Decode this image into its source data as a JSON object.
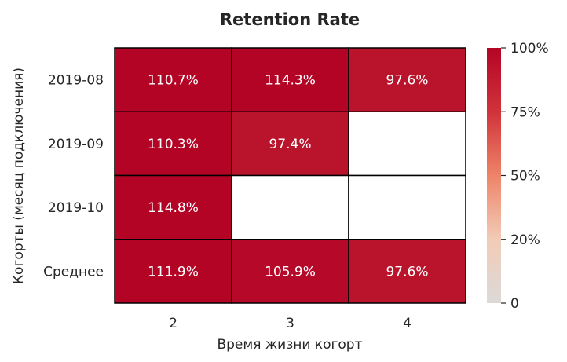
{
  "chart_data": {
    "type": "heatmap",
    "title": "Retention Rate",
    "xlabel": "Время жизни когорт",
    "ylabel": "Когорты (месяц подключения)",
    "x_categories": [
      "2",
      "3",
      "4"
    ],
    "y_categories": [
      "2019-08",
      "2019-09",
      "2019-10",
      "Среднее"
    ],
    "values": [
      [
        110.7,
        114.3,
        97.6
      ],
      [
        110.3,
        97.4,
        null
      ],
      [
        114.8,
        null,
        null
      ],
      [
        111.9,
        105.9,
        97.6
      ]
    ],
    "cell_labels": [
      [
        "110.7%",
        "114.3%",
        "97.6%"
      ],
      [
        "110.3%",
        "97.4%",
        ""
      ],
      [
        "114.8%",
        "",
        ""
      ],
      [
        "111.9%",
        "105.9%",
        "97.6%"
      ]
    ],
    "colorbar": {
      "ticks": [
        0,
        20,
        50,
        75,
        100
      ],
      "tick_labels": [
        "0",
        "20%",
        "50%",
        "75%",
        "100%"
      ],
      "min": 0,
      "max": 100,
      "scale": "nonlinear (custom boundaries)"
    },
    "colors": {
      "low": "#dcdcdc",
      "high": "#b40426",
      "missing": "#ffffff",
      "grid_line": "#000000"
    },
    "grid": false
  }
}
